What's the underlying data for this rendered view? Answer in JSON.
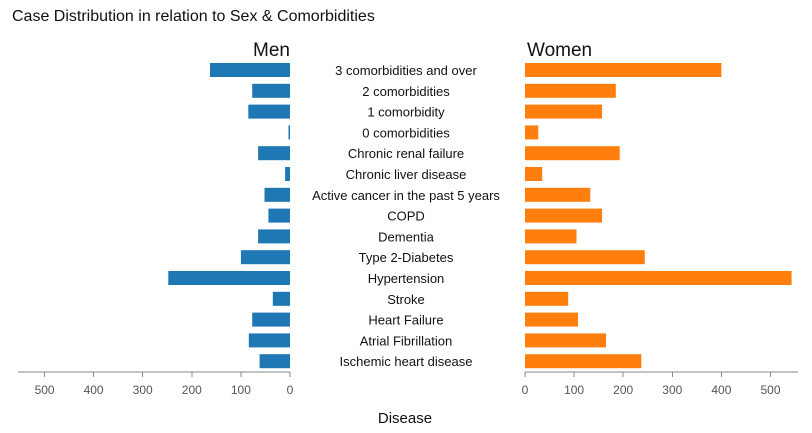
{
  "chart_data": {
    "type": "bar",
    "title": "Case Distribution in relation to Sex & Comorbidities",
    "xlabel": "Disease",
    "categories": [
      "3 comorbidities and over",
      "2 comorbidities",
      "1 comorbidity",
      "0 comorbidities",
      "Chronic renal failure",
      "Chronic liver disease",
      "Active cancer in the past 5 years",
      "COPD",
      "Dementia",
      "Type 2-Diabetes",
      "Hypertension",
      "Stroke",
      "Heart Failure",
      "Atrial Fibrillation",
      "Ischemic heart disease"
    ],
    "series": [
      {
        "name": "Men",
        "color": "#1f77b4",
        "xlim": [
          0,
          550
        ],
        "reversed": true,
        "ticks": [
          0,
          100,
          200,
          300,
          400,
          500
        ],
        "values": [
          163,
          77,
          85,
          3,
          65,
          10,
          52,
          44,
          65,
          100,
          248,
          35,
          77,
          84,
          62
        ]
      },
      {
        "name": "Women",
        "color": "#ff7f0e",
        "xlim": [
          0,
          550
        ],
        "reversed": false,
        "ticks": [
          0,
          100,
          200,
          300,
          400,
          500
        ],
        "values": [
          400,
          185,
          157,
          27,
          193,
          35,
          133,
          157,
          105,
          244,
          543,
          88,
          108,
          165,
          237
        ]
      }
    ]
  }
}
